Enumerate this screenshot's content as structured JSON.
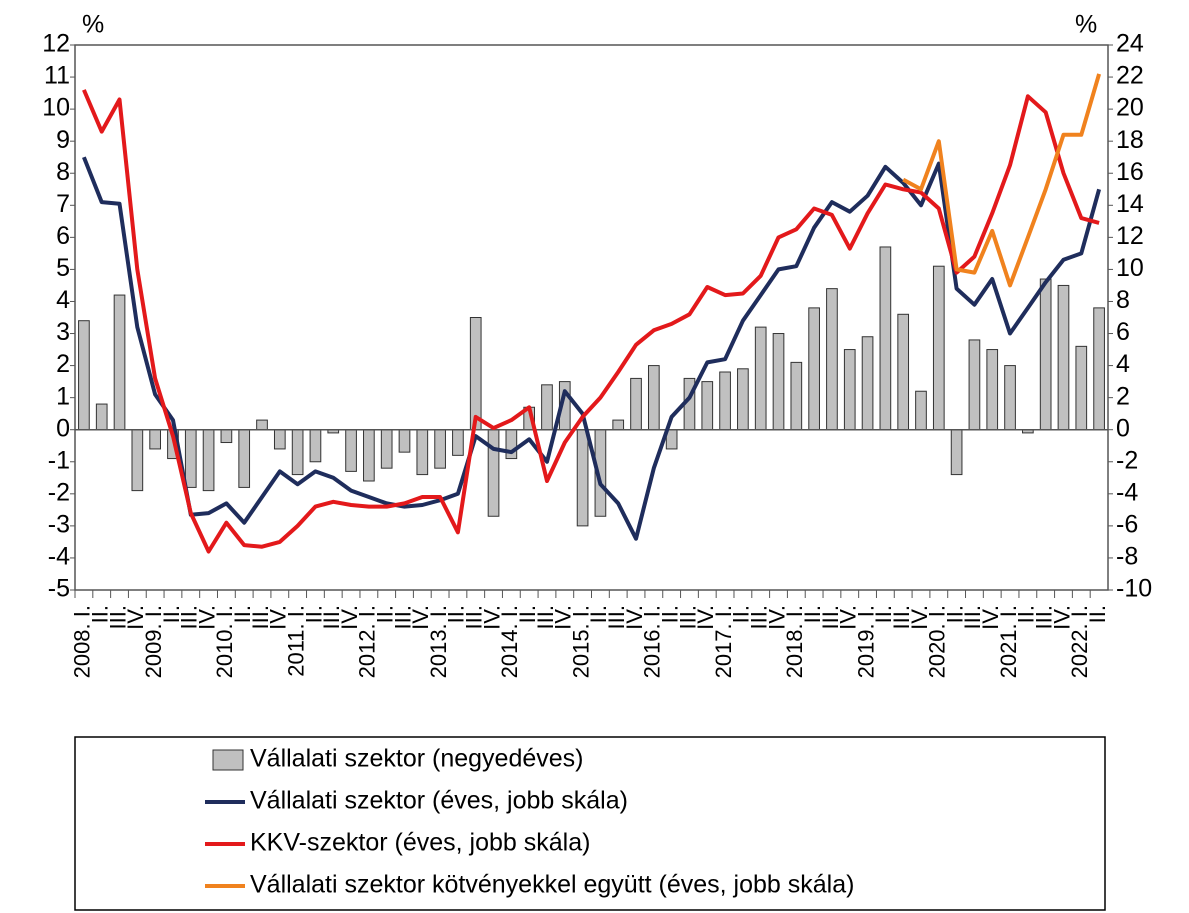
{
  "chart_data": {
    "type": "bar_line",
    "y_unit_label": "%",
    "y2_unit_label": "%",
    "categories": [
      "2008. I.",
      "II.",
      "III.",
      "IV.",
      "2009. I.",
      "II.",
      "III.",
      "IV.",
      "2010. I.",
      "II.",
      "III.",
      "IV.",
      "2011. I.",
      "II.",
      "III.",
      "IV.",
      "2012. I.",
      "II.",
      "III.",
      "IV.",
      "2013. I.",
      "II.",
      "III.",
      "IV.",
      "2014. I.",
      "II.",
      "III.",
      "IV.",
      "2015. I.",
      "II.",
      "III.",
      "IV.",
      "2016. I.",
      "II.",
      "III.",
      "IV.",
      "2017. I.",
      "II.",
      "III.",
      "IV.",
      "2018. I.",
      "II.",
      "III.",
      "IV.",
      "2019. I.",
      "II.",
      "III.",
      "IV.",
      "2020. I.",
      "II.",
      "III.",
      "IV.",
      "2021. I.",
      "II.",
      "III.",
      "IV.",
      "2022. I.",
      "II."
    ],
    "series": [
      {
        "name": "Vállalati szektor (negyedéves)",
        "type": "bar",
        "axis": "y",
        "color": "#c0c0c0",
        "values": [
          3.4,
          0.8,
          4.2,
          -1.9,
          -0.6,
          -0.9,
          -1.8,
          -1.9,
          -0.4,
          -1.8,
          0.3,
          -0.6,
          -1.4,
          -1.0,
          -0.1,
          -1.3,
          -1.6,
          -1.2,
          -0.7,
          -1.4,
          -1.2,
          -0.8,
          3.5,
          -2.7,
          -0.9,
          0.7,
          1.4,
          1.5,
          -3.0,
          -2.7,
          0.3,
          1.6,
          2.0,
          -0.6,
          1.6,
          1.5,
          1.8,
          1.9,
          3.2,
          3.0,
          2.1,
          3.8,
          4.4,
          2.5,
          2.9,
          5.7,
          3.6,
          1.2,
          5.1,
          -1.4,
          2.8,
          2.5,
          2.0,
          -0.1,
          4.7,
          4.5,
          2.6,
          3.8
        ]
      },
      {
        "name": "Vállalati szektor (éves, jobb skála)",
        "type": "line",
        "axis": "y2",
        "color": "#1f2d5c",
        "values": [
          17.0,
          14.2,
          14.1,
          6.4,
          2.2,
          0.6,
          -5.3,
          -5.2,
          -4.6,
          -5.8,
          -4.2,
          -2.6,
          -3.4,
          -2.6,
          -3.0,
          -3.8,
          -4.2,
          -4.6,
          -4.8,
          -4.7,
          -4.4,
          -4.0,
          -0.4,
          -1.2,
          -1.4,
          -0.6,
          -2.0,
          2.4,
          1.0,
          -3.4,
          -4.6,
          -6.8,
          -2.4,
          0.8,
          2.0,
          4.2,
          4.4,
          6.8,
          8.4,
          10.0,
          10.2,
          12.6,
          14.2,
          13.6,
          14.6,
          16.4,
          15.4,
          14.0,
          16.6,
          8.8,
          7.8,
          9.4,
          6.0,
          7.6,
          9.2,
          10.6,
          11.0,
          15.0
        ]
      },
      {
        "name": "KKV-szektor (éves, jobb skála)",
        "type": "line",
        "axis": "y2",
        "color": "#e3191b",
        "values": [
          21.2,
          18.6,
          20.6,
          10.0,
          3.2,
          -0.4,
          -5.2,
          -7.6,
          -5.8,
          -7.2,
          -7.3,
          -7.0,
          -6.0,
          -4.8,
          -4.5,
          -4.7,
          -4.8,
          -4.8,
          -4.6,
          -4.2,
          -4.2,
          -6.4,
          0.8,
          0.1,
          0.6,
          1.4,
          -3.2,
          -0.8,
          0.8,
          2.0,
          3.6,
          5.3,
          6.2,
          6.6,
          7.2,
          8.9,
          8.4,
          8.5,
          9.6,
          12.0,
          12.5,
          13.8,
          13.4,
          11.3,
          13.5,
          15.3,
          15.0,
          14.8,
          13.8,
          9.8,
          10.8,
          13.5,
          16.5,
          20.8,
          19.8,
          16.0,
          13.2,
          12.9
        ]
      },
      {
        "name": "Vállalati szektor kötvényekkel együtt (éves, jobb skála)",
        "type": "line",
        "axis": "y2",
        "color": "#f0821e",
        "values": [
          null,
          null,
          null,
          null,
          null,
          null,
          null,
          null,
          null,
          null,
          null,
          null,
          null,
          null,
          null,
          null,
          null,
          null,
          null,
          null,
          null,
          null,
          null,
          null,
          null,
          null,
          null,
          null,
          null,
          null,
          null,
          null,
          null,
          null,
          null,
          null,
          null,
          null,
          null,
          null,
          null,
          null,
          null,
          null,
          null,
          null,
          15.6,
          15.0,
          18.0,
          10.0,
          9.8,
          12.4,
          9.0,
          12.0,
          15.0,
          18.4,
          18.4,
          22.2
        ]
      }
    ],
    "ylim": [
      -5,
      12
    ],
    "yticks": [
      -5,
      -4,
      -3,
      -2,
      -1,
      0,
      1,
      2,
      3,
      4,
      5,
      6,
      7,
      8,
      9,
      10,
      11,
      12
    ],
    "y2lim": [
      -10,
      24
    ],
    "y2ticks": [
      -10,
      -8,
      -6,
      -4,
      -2,
      0,
      2,
      4,
      6,
      8,
      10,
      12,
      14,
      16,
      18,
      20,
      22,
      24
    ],
    "legend": "bottom"
  }
}
